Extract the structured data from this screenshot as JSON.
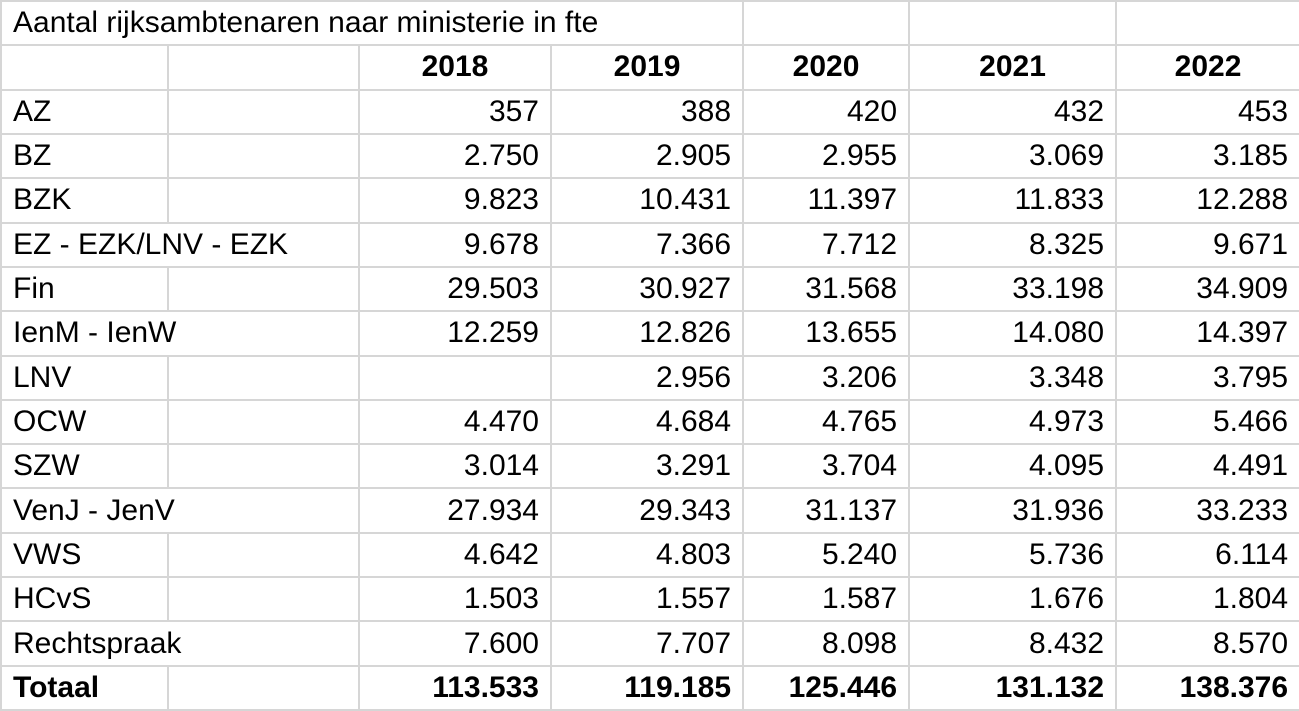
{
  "title": "Aantal rijksambtenaren naar ministerie in fte",
  "colors": {
    "background": "#ffffff",
    "gridline": "#d6d6d6",
    "text": "#000000"
  },
  "chart_data": {
    "type": "table",
    "title": "Aantal rijksambtenaren naar ministerie in fte",
    "columns": [
      "",
      "",
      "2018",
      "2019",
      "2020",
      "2021",
      "2022"
    ],
    "rows": [
      {
        "label": "AZ",
        "values": [
          "357",
          "388",
          "420",
          "432",
          "453"
        ]
      },
      {
        "label": "BZ",
        "values": [
          "2.750",
          "2.905",
          "2.955",
          "3.069",
          "3.185"
        ]
      },
      {
        "label": "BZK",
        "values": [
          "9.823",
          "10.431",
          "11.397",
          "11.833",
          "12.288"
        ]
      },
      {
        "label": "EZ - EZK/LNV - EZK",
        "label_overflows": true,
        "values": [
          "9.678",
          "7.366",
          "7.712",
          "8.325",
          "9.671"
        ]
      },
      {
        "label": "Fin",
        "values": [
          "29.503",
          "30.927",
          "31.568",
          "33.198",
          "34.909"
        ]
      },
      {
        "label": "IenM - IenW",
        "label_overflows": true,
        "values": [
          "12.259",
          "12.826",
          "13.655",
          "14.080",
          "14.397"
        ]
      },
      {
        "label": "LNV",
        "values": [
          "",
          "2.956",
          "3.206",
          "3.348",
          "3.795"
        ]
      },
      {
        "label": "OCW",
        "values": [
          "4.470",
          "4.684",
          "4.765",
          "4.973",
          "5.466"
        ]
      },
      {
        "label": "SZW",
        "values": [
          "3.014",
          "3.291",
          "3.704",
          "4.095",
          "4.491"
        ]
      },
      {
        "label": "VenJ - JenV",
        "label_overflows": true,
        "values": [
          "27.934",
          "29.343",
          "31.137",
          "31.936",
          "33.233"
        ]
      },
      {
        "label": "VWS",
        "values": [
          "4.642",
          "4.803",
          "5.240",
          "5.736",
          "6.114"
        ]
      },
      {
        "label": "HCvS",
        "values": [
          "1.503",
          "1.557",
          "1.587",
          "1.676",
          "1.804"
        ]
      },
      {
        "label": "Rechtspraak",
        "label_overflows": true,
        "values": [
          "7.600",
          "7.707",
          "8.098",
          "8.432",
          "8.570"
        ]
      },
      {
        "label": "Totaal",
        "bold": true,
        "values": [
          "113.533",
          "119.185",
          "125.446",
          "131.132",
          "138.376"
        ]
      }
    ]
  }
}
